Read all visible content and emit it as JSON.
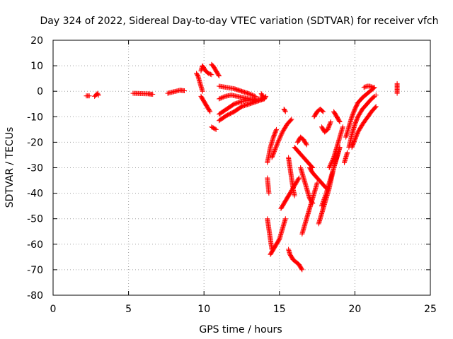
{
  "chart_data": {
    "type": "scatter",
    "title": "Day 324 of 2022, Sidereal Day-to-day VTEC variation (SDTVAR) for receiver vfch",
    "xlabel": "GPS time / hours",
    "ylabel": "SDTVAR / TECUs",
    "xlim": [
      0,
      25
    ],
    "ylim": [
      -80,
      20
    ],
    "x_ticks": [
      0,
      5,
      10,
      15,
      20,
      25
    ],
    "y_ticks": [
      20,
      10,
      0,
      -10,
      -20,
      -30,
      -40,
      -50,
      -60,
      -70,
      -80
    ],
    "x_tick_labels": [
      "0",
      "5",
      "10",
      "15",
      "20",
      "25"
    ],
    "y_tick_labels": [
      "20",
      "10",
      "0",
      "-10",
      "-20",
      "-30",
      "-40",
      "-50",
      "-60",
      "-70",
      "-80"
    ],
    "grid": true,
    "marker": "+",
    "color": "#ff0000",
    "series": [
      {
        "name": "SDTVAR",
        "segments": [
          {
            "x": [
              2.2,
              2.4
            ],
            "y": [
              -1.8,
              -1.8
            ]
          },
          {
            "x": [
              2.75,
              2.85,
              2.95,
              3.0
            ],
            "y": [
              -2.0,
              -1.4,
              -0.8,
              -1.6
            ]
          },
          {
            "x": [
              5.3,
              5.8,
              6.3,
              6.6
            ],
            "y": [
              -0.8,
              -0.9,
              -1.0,
              -1.2
            ]
          },
          {
            "x": [
              7.6,
              8.0,
              8.4,
              8.7
            ],
            "y": [
              -0.8,
              -0.2,
              0.4,
              0.2
            ]
          },
          {
            "x": [
              9.8,
              9.9,
              10.1,
              10.3,
              10.5
            ],
            "y": [
              8.0,
              10.0,
              8.0,
              7.0,
              6.5
            ]
          },
          {
            "x": [
              9.5,
              9.6,
              9.7,
              9.8,
              9.9
            ],
            "y": [
              7.0,
              6.0,
              4.0,
              2.0,
              0.0
            ]
          },
          {
            "x": [
              10.5,
              10.6,
              10.7,
              10.8,
              10.9,
              11.0
            ],
            "y": [
              10.5,
              10.0,
              9.0,
              8.0,
              7.0,
              6.0
            ]
          },
          {
            "x": [
              9.8,
              10.0,
              10.2,
              10.4
            ],
            "y": [
              -2.0,
              -4.0,
              -6.0,
              -8.0
            ]
          },
          {
            "x": [
              10.5,
              10.8
            ],
            "y": [
              -14.0,
              -15.0
            ]
          },
          {
            "x": [
              11.0,
              11.5,
              12.0,
              12.5,
              13.0,
              13.4
            ],
            "y": [
              2.0,
              1.5,
              1.0,
              0.0,
              -1.0,
              -2.0
            ]
          },
          {
            "x": [
              11.0,
              11.4,
              11.8,
              12.2,
              12.6,
              13.0,
              13.4
            ],
            "y": [
              -3.0,
              -2.0,
              -1.5,
              -2.0,
              -2.5,
              -3.0,
              -3.5
            ]
          },
          {
            "x": [
              11.0,
              11.5,
              12.0,
              12.5,
              13.0,
              13.5,
              13.9
            ],
            "y": [
              -9.0,
              -7.0,
              -5.0,
              -4.0,
              -3.5,
              -3.0,
              -3.0
            ]
          },
          {
            "x": [
              11.0,
              11.5,
              12.0,
              12.5,
              13.0,
              13.5,
              14.0
            ],
            "y": [
              -11.5,
              -9.5,
              -8.0,
              -6.0,
              -5.0,
              -4.0,
              -3.0
            ]
          },
          {
            "x": [
              13.8,
              13.9,
              14.0,
              14.1
            ],
            "y": [
              -1.0,
              -2.0,
              -3.0,
              -2.0
            ]
          },
          {
            "x": [
              14.2,
              14.4,
              14.6,
              14.8
            ],
            "y": [
              -28.0,
              -22.0,
              -18.0,
              -15.0
            ]
          },
          {
            "x": [
              14.5,
              14.9,
              15.2,
              15.5,
              15.8
            ],
            "y": [
              -26.0,
              -20.0,
              -16.0,
              -13.0,
              -11.0
            ]
          },
          {
            "x": [
              15.3,
              15.4
            ],
            "y": [
              -7.0,
              -8.0
            ]
          },
          {
            "x": [
              14.2,
              14.3
            ],
            "y": [
              -34.0,
              -40.0
            ]
          },
          {
            "x": [
              14.2,
              14.3,
              14.4,
              14.5
            ],
            "y": [
              -50.0,
              -54.0,
              -58.0,
              -62.0
            ]
          },
          {
            "x": [
              14.4,
              14.6,
              14.8,
              15.0,
              15.2,
              15.4
            ],
            "y": [
              -64.0,
              -62.0,
              -60.0,
              -58.0,
              -54.0,
              -50.0
            ]
          },
          {
            "x": [
              15.1,
              15.3,
              15.5,
              15.7,
              16.0,
              16.3
            ],
            "y": [
              -46.0,
              -44.0,
              -42.0,
              -40.0,
              -37.0,
              -34.0
            ]
          },
          {
            "x": [
              15.6,
              15.7,
              15.8,
              15.9,
              16.0
            ],
            "y": [
              -26.0,
              -30.0,
              -34.0,
              -38.0,
              -41.0
            ]
          },
          {
            "x": [
              15.6,
              15.7,
              15.9,
              16.1,
              16.3,
              16.5
            ],
            "y": [
              -62.0,
              -64.0,
              -66.0,
              -67.0,
              -68.0,
              -70.0
            ]
          },
          {
            "x": [
              16.0,
              16.3,
              16.6,
              16.9,
              17.2
            ],
            "y": [
              -22.0,
              -24.0,
              -26.0,
              -28.0,
              -30.0
            ]
          },
          {
            "x": [
              16.5,
              16.7,
              16.9,
              17.1,
              17.3,
              17.5
            ],
            "y": [
              -56.0,
              -52.0,
              -48.0,
              -44.0,
              -40.0,
              -36.0
            ]
          },
          {
            "x": [
              16.4,
              16.6,
              16.8,
              17.0,
              17.2
            ],
            "y": [
              -30.0,
              -34.0,
              -38.0,
              -42.0,
              -44.0
            ]
          },
          {
            "x": [
              16.2,
              16.4,
              16.6,
              16.8
            ],
            "y": [
              -20.0,
              -18.0,
              -19.0,
              -21.0
            ]
          },
          {
            "x": [
              17.0,
              17.2,
              17.5,
              17.8,
              18.1
            ],
            "y": [
              -30.0,
              -32.0,
              -34.0,
              -36.0,
              -38.0
            ]
          },
          {
            "x": [
              17.3,
              17.5,
              17.7,
              17.9
            ],
            "y": [
              -10.0,
              -8.0,
              -7.0,
              -8.0
            ]
          },
          {
            "x": [
              17.6,
              17.8,
              18.0,
              18.3,
              18.6,
              19.0
            ],
            "y": [
              -52.0,
              -48.0,
              -44.0,
              -38.0,
              -30.0,
              -22.0
            ]
          },
          {
            "x": [
              17.8,
              18.1,
              18.4,
              18.7,
              19.0
            ],
            "y": [
              -45.0,
              -40.0,
              -34.0,
              -28.0,
              -22.0
            ]
          },
          {
            "x": [
              17.8,
              18.0,
              18.2,
              18.4
            ],
            "y": [
              -14.0,
              -16.0,
              -15.0,
              -12.0
            ]
          },
          {
            "x": [
              18.3,
              18.6,
              18.9,
              19.2
            ],
            "y": [
              -30.0,
              -26.0,
              -20.0,
              -14.0
            ]
          },
          {
            "x": [
              18.6,
              18.8,
              19.0
            ],
            "y": [
              -8.0,
              -10.0,
              -12.0
            ]
          },
          {
            "x": [
              19.3,
              19.4,
              19.5
            ],
            "y": [
              -28.0,
              -26.0,
              -24.0
            ]
          },
          {
            "x": [
              19.4,
              19.6,
              19.8,
              20.0,
              20.2,
              20.5,
              20.8,
              21.1,
              21.3
            ],
            "y": [
              -18.0,
              -14.0,
              -10.0,
              -7.0,
              -4.5,
              -2.5,
              -1.0,
              0.5,
              1.5
            ]
          },
          {
            "x": [
              19.6,
              19.8,
              20.0,
              20.2,
              20.5,
              20.8,
              21.1,
              21.3
            ],
            "y": [
              -22.0,
              -17.0,
              -13.0,
              -10.0,
              -7.0,
              -5.0,
              -3.0,
              -2.0
            ]
          },
          {
            "x": [
              19.8,
              20.0,
              20.2,
              20.5,
              20.8,
              21.1,
              21.4
            ],
            "y": [
              -22.0,
              -19.0,
              -16.0,
              -13.0,
              -10.5,
              -8.0,
              -6.0
            ]
          },
          {
            "x": [
              20.6,
              20.8,
              21.0,
              21.2
            ],
            "y": [
              1.5,
              2.0,
              2.0,
              1.5
            ]
          },
          {
            "x": [
              21.4
            ],
            "y": [
              -1.5
            ]
          },
          {
            "x": [
              22.8,
              22.8,
              22.8,
              22.8
            ],
            "y": [
              3.0,
              1.5,
              0.0,
              -0.8
            ]
          }
        ]
      }
    ]
  }
}
